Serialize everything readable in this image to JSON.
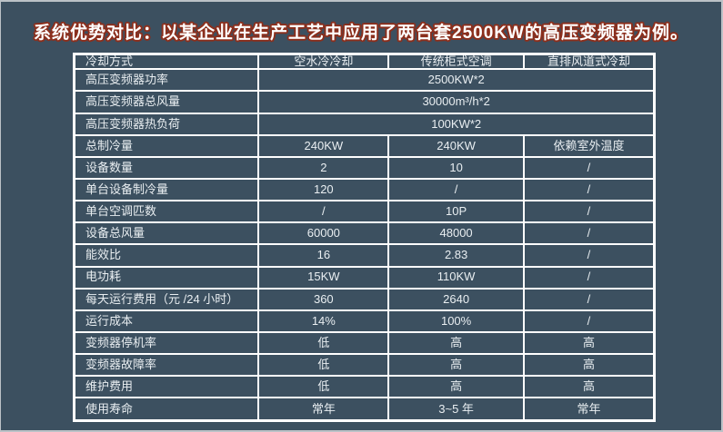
{
  "frame": {
    "background_color": "#3C5060",
    "edge_color": "#BCC2C7",
    "table_border_color": "#FFFFFF",
    "cell_text_color": "#E9EEF1"
  },
  "title": {
    "text": "系统优势对比：以某企业在生产工艺中应用了两台套2500KW的高压变频器为例。",
    "fill_color": "#FFFFFF",
    "outline_color": "#8B2F1D"
  },
  "chart_data": {
    "type": "table",
    "title": "系统优势对比：以某企业在生产工艺中应用了两台套2500KW的高压变频器为例。",
    "columns": [
      "冷却方式",
      "空水冷冷却",
      "传统柜式空调",
      "直排风道式冷却"
    ],
    "rows": [
      {
        "label": "高压变频器功率",
        "span": "2500KW*2"
      },
      {
        "label": "高压变频器总风量",
        "span": "30000m³/h*2"
      },
      {
        "label": "高压变频器热负荷",
        "span": "100KW*2"
      },
      {
        "label": "总制冷量",
        "cells": [
          "240KW",
          "240KW",
          "依赖室外温度"
        ]
      },
      {
        "label": "设备数量",
        "cells": [
          "2",
          "10",
          "/"
        ]
      },
      {
        "label": "单台设备制冷量",
        "cells": [
          "120",
          "/",
          "/"
        ]
      },
      {
        "label": "单台空调匹数",
        "cells": [
          "/",
          "10P",
          "/"
        ]
      },
      {
        "label": "设备总风量",
        "cells": [
          "60000",
          "48000",
          "/"
        ]
      },
      {
        "label": "能效比",
        "cells": [
          "16",
          "2.83",
          "/"
        ]
      },
      {
        "label": "电功耗",
        "cells": [
          "15KW",
          "110KW",
          "/"
        ]
      },
      {
        "label": "每天运行费用（元 /24 小时）",
        "cells": [
          "360",
          "2640",
          "/"
        ]
      },
      {
        "label": "运行成本",
        "cells": [
          "14%",
          "100%",
          "/"
        ]
      },
      {
        "label": "变频器停机率",
        "cells": [
          "低",
          "高",
          "高"
        ]
      },
      {
        "label": "变频器故障率",
        "cells": [
          "低",
          "高",
          "高"
        ]
      },
      {
        "label": "维护费用",
        "cells": [
          "低",
          "高",
          "高"
        ]
      },
      {
        "label": "使用寿命",
        "cells": [
          "常年",
          "3~5 年",
          "常年"
        ]
      }
    ],
    "layout": {
      "grid": true,
      "legend": false,
      "header_row": true
    }
  }
}
